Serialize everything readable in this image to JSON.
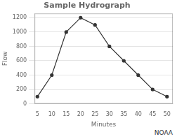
{
  "chart_data": {
    "type": "line",
    "title": "Sample Hydrograph",
    "x_label": "Minutes",
    "y_label": "Flow",
    "x": [
      5,
      10,
      15,
      20,
      25,
      30,
      35,
      40,
      45,
      50
    ],
    "values": [
      100,
      400,
      1000,
      1200,
      1100,
      800,
      600,
      400,
      200,
      100
    ],
    "xlim": [
      4,
      52
    ],
    "xticks": [
      5,
      10,
      15,
      20,
      25,
      30,
      35,
      40,
      45,
      50
    ],
    "ylim": [
      0,
      1260
    ],
    "yticks": [
      0,
      200,
      400,
      600,
      800,
      1000,
      1200
    ],
    "color": "#333333",
    "marker": "circle",
    "grid": "y",
    "annotation": "NOAA"
  }
}
